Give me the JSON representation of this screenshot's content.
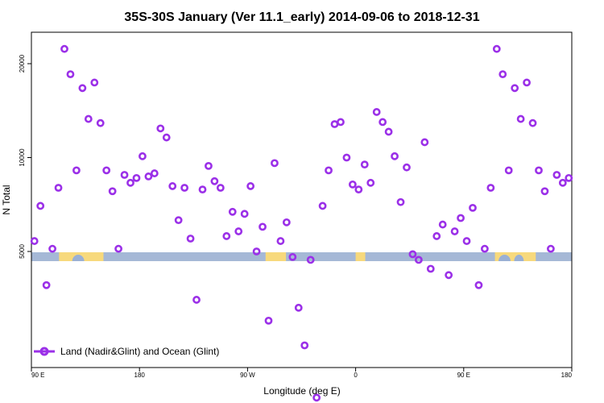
{
  "chart_data": {
    "type": "scatter",
    "title": "35S-30S January (Ver 11.1_early)   2014-09-06 to 2018-12-31",
    "xlabel": "Longitude (deg E)",
    "ylabel": "N Total",
    "xlim": [
      90,
      540
    ],
    "x_ticks": [
      {
        "value": 90,
        "label": "90 E"
      },
      {
        "value": 180,
        "label": "180"
      },
      {
        "value": 270,
        "label": "90 W"
      },
      {
        "value": 360,
        "label": "0"
      },
      {
        "value": 450,
        "label": "90 E"
      },
      {
        "value": 540,
        "label": "180"
      }
    ],
    "y_ticks": [
      {
        "value": 5000,
        "label": "5000"
      },
      {
        "value": 10000,
        "label": "10000"
      },
      {
        "value": 20000,
        "label": "20000"
      }
    ],
    "grid": false,
    "legend": {
      "position": "bottom-left",
      "entries": [
        {
          "name": "Land (Nadir&Glint) and Ocean (Glint)",
          "color": "#9b30e8"
        }
      ]
    },
    "colors": {
      "points": "#9b30e8",
      "ocean_band": "#a5b8d6",
      "land_band": "#f7d97c",
      "land_bump": "#9ab0d4"
    },
    "series": [
      {
        "name": "Land (Nadir&Glint) and Ocean (Glint)",
        "points": [
          [
            92.5,
            5400
          ],
          [
            97.5,
            7000
          ],
          [
            102.5,
            3900
          ],
          [
            107.5,
            5100
          ],
          [
            112.5,
            8000
          ],
          [
            117.5,
            22300
          ],
          [
            122.5,
            18500
          ],
          [
            127.5,
            9100
          ],
          [
            132.5,
            16700
          ],
          [
            137.5,
            13300
          ],
          [
            142.5,
            17400
          ],
          [
            147.5,
            12900
          ],
          [
            152.5,
            9100
          ],
          [
            157.5,
            7800
          ],
          [
            162.5,
            5100
          ],
          [
            167.5,
            8800
          ],
          [
            172.5,
            8300
          ],
          [
            177.5,
            8600
          ],
          [
            182.5,
            10100
          ],
          [
            187.5,
            8700
          ],
          [
            192.5,
            8900
          ],
          [
            197.5,
            12400
          ],
          [
            202.5,
            11600
          ],
          [
            207.5,
            8100
          ],
          [
            212.5,
            6300
          ],
          [
            217.5,
            8000
          ],
          [
            222.5,
            5500
          ],
          [
            227.5,
            3500
          ],
          [
            232.5,
            7900
          ],
          [
            237.5,
            9400
          ],
          [
            242.5,
            8400
          ],
          [
            247.5,
            8000
          ],
          [
            252.5,
            5600
          ],
          [
            257.5,
            6700
          ],
          [
            262.5,
            5800
          ],
          [
            267.5,
            6600
          ],
          [
            272.5,
            8100
          ],
          [
            277.5,
            5000
          ],
          [
            282.5,
            6000
          ],
          [
            287.5,
            3000
          ],
          [
            292.5,
            9600
          ],
          [
            297.5,
            5400
          ],
          [
            302.5,
            6200
          ],
          [
            307.5,
            4800
          ],
          [
            312.5,
            3300
          ],
          [
            317.5,
            2500
          ],
          [
            322.5,
            4700
          ],
          [
            327.5,
            1700
          ],
          [
            332.5,
            7000
          ],
          [
            337.5,
            9100
          ],
          [
            342.5,
            12800
          ],
          [
            347.5,
            13000
          ],
          [
            352.5,
            10000
          ],
          [
            357.5,
            8200
          ],
          [
            362.5,
            7900
          ],
          [
            367.5,
            9500
          ],
          [
            372.5,
            8300
          ],
          [
            377.5,
            14000
          ],
          [
            382.5,
            13000
          ],
          [
            387.5,
            12100
          ],
          [
            392.5,
            10100
          ],
          [
            397.5,
            7200
          ],
          [
            402.5,
            9300
          ],
          [
            407.5,
            4900
          ],
          [
            412.5,
            4700
          ],
          [
            417.5,
            11200
          ],
          [
            422.5,
            4400
          ],
          [
            427.5,
            5600
          ],
          [
            432.5,
            6100
          ],
          [
            437.5,
            4200
          ],
          [
            442.5,
            5800
          ],
          [
            447.5,
            6400
          ],
          [
            452.5,
            5400
          ],
          [
            457.5,
            6900
          ],
          [
            462.5,
            3900
          ],
          [
            467.5,
            5100
          ],
          [
            472.5,
            8000
          ],
          [
            477.5,
            22300
          ],
          [
            482.5,
            18500
          ],
          [
            487.5,
            9100
          ],
          [
            492.5,
            16700
          ],
          [
            497.5,
            13300
          ],
          [
            502.5,
            17400
          ],
          [
            507.5,
            12900
          ],
          [
            512.5,
            9100
          ],
          [
            517.5,
            7800
          ],
          [
            522.5,
            5100
          ],
          [
            527.5,
            8800
          ],
          [
            532.5,
            8300
          ],
          [
            537.5,
            8600
          ]
        ]
      }
    ]
  }
}
